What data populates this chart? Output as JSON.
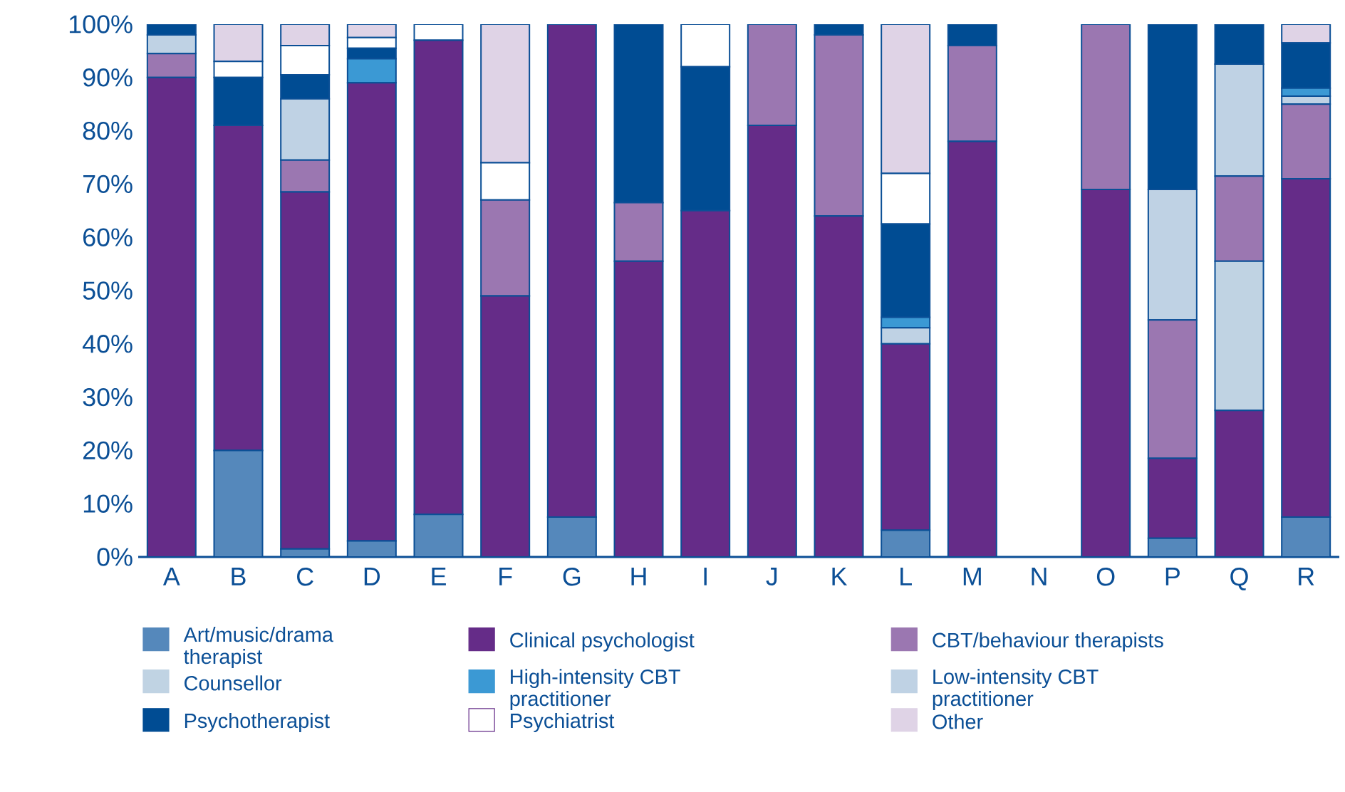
{
  "chart_data": {
    "type": "bar",
    "stacked": true,
    "legend": "bottom",
    "grid": false,
    "categories": [
      "A",
      "B",
      "C",
      "D",
      "E",
      "F",
      "G",
      "H",
      "I",
      "J",
      "K",
      "L",
      "M",
      "N",
      "O",
      "P",
      "Q",
      "R"
    ],
    "ylim": [
      0,
      100
    ],
    "yticks": [
      {
        "value": 0,
        "label": "0%"
      },
      {
        "value": 10,
        "label": "10%"
      },
      {
        "value": 20,
        "label": "20%"
      },
      {
        "value": 30,
        "label": "30%"
      },
      {
        "value": 40,
        "label": "40%"
      },
      {
        "value": 50,
        "label": "50%"
      },
      {
        "value": 60,
        "label": "60%"
      },
      {
        "value": 70,
        "label": "70%"
      },
      {
        "value": 80,
        "label": "80%"
      },
      {
        "value": 90,
        "label": "90%"
      },
      {
        "value": 100,
        "label": "100%"
      }
    ],
    "series": [
      {
        "name": "Art/music/drama therapist",
        "color": "#5588bb",
        "values": [
          0,
          20,
          1.5,
          3,
          8,
          0,
          7.5,
          0,
          0,
          0,
          0,
          5,
          0,
          null,
          0,
          3.5,
          0,
          7.5
        ]
      },
      {
        "name": "Clinical psychologist",
        "color": "#652c88",
        "values": [
          90,
          61,
          67,
          86,
          89,
          49,
          92.5,
          55.5,
          65,
          81,
          64,
          35,
          78,
          null,
          69,
          15,
          27.5,
          63.5
        ]
      },
      {
        "name": "Counsellor",
        "color": "#c0d3e3",
        "values": [
          0,
          0,
          0,
          0,
          0,
          0,
          0,
          0,
          0,
          0,
          0,
          0,
          0,
          null,
          0,
          0,
          28,
          0
        ]
      },
      {
        "name": "CBT/behaviour therapists",
        "color": "#9b77b1",
        "values": [
          4.5,
          0,
          6,
          0,
          0,
          18,
          0,
          11,
          0,
          19,
          34,
          0,
          18,
          null,
          31,
          26,
          16,
          14
        ]
      },
      {
        "name": "Low-intensity CBT practitioner",
        "color": "#bfd2e4",
        "values": [
          3.5,
          0,
          11.5,
          0,
          0,
          0,
          0,
          0,
          0,
          0,
          0,
          3,
          0,
          null,
          0,
          24.5,
          21,
          1.5
        ]
      },
      {
        "name": "High-intensity CBT practitioner",
        "color": "#3b99d4",
        "values": [
          0,
          0,
          0,
          4.5,
          0,
          0,
          0,
          0,
          0,
          0,
          0,
          2,
          0,
          null,
          0,
          0,
          0,
          1.5
        ]
      },
      {
        "name": "Psychotherapist",
        "color": "#004c93",
        "values": [
          2,
          9,
          4.5,
          2,
          0,
          0,
          0,
          33.5,
          27,
          0,
          2,
          17.5,
          4,
          null,
          0,
          31,
          7.5,
          8.5
        ]
      },
      {
        "name": "Psychiatrist",
        "color": "#ffffff",
        "values": [
          0,
          3,
          5.5,
          2,
          3,
          7,
          0,
          0,
          8,
          0,
          0,
          9.5,
          0,
          null,
          0,
          0,
          0,
          0
        ]
      },
      {
        "name": "Other",
        "color": "#dfd3e6",
        "values": [
          0,
          7,
          4,
          2.5,
          0,
          26,
          0,
          0,
          0,
          0,
          0,
          28,
          0,
          null,
          0,
          0,
          0,
          3.5
        ]
      }
    ]
  }
}
